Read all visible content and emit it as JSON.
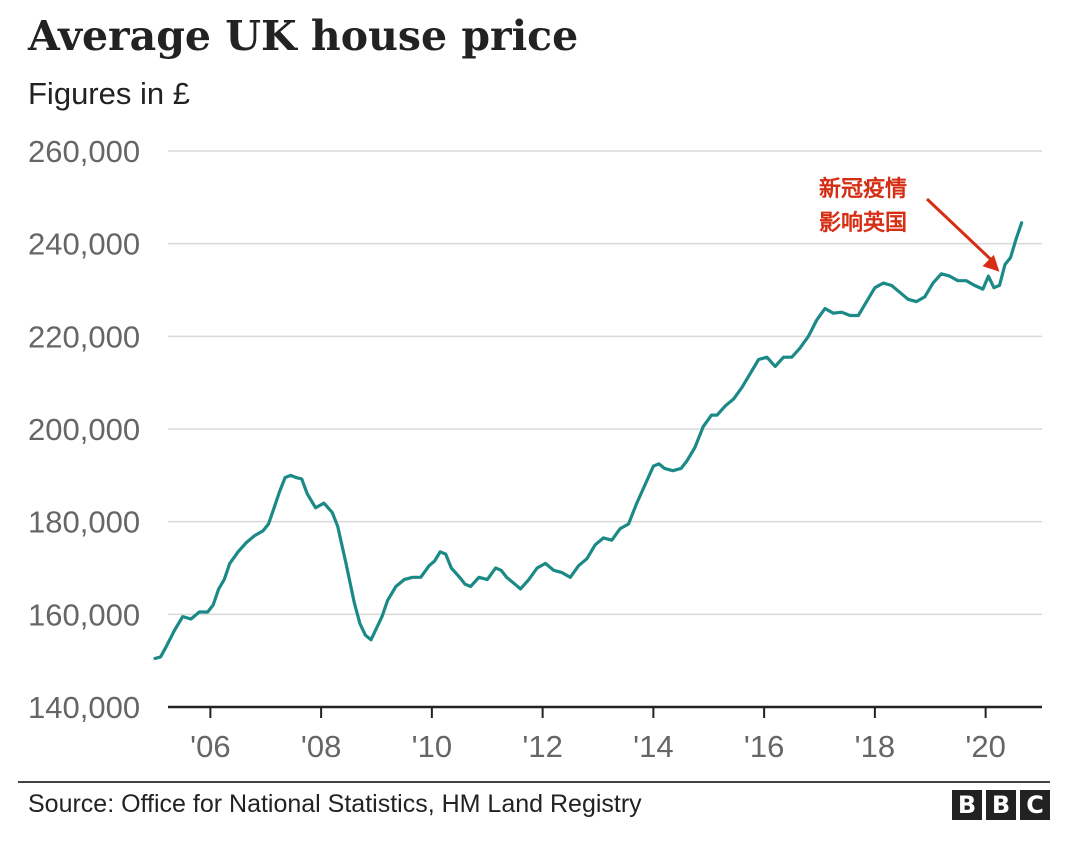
{
  "header": {
    "title": "Average UK house price",
    "subtitle": "Figures in £"
  },
  "footer": {
    "source": "Source: Office for National Statistics, HM Land Registry",
    "logo_letters": [
      "B",
      "B",
      "C"
    ]
  },
  "colors": {
    "line": "#1b8a87",
    "annotation": "#d62e14",
    "grid": "#d9d9d9",
    "tick_text": "#666666",
    "axis": "#222222"
  },
  "chart_data": {
    "type": "line",
    "title": "Average UK house price",
    "subtitle": "Figures in £",
    "ylim": [
      140000,
      260000
    ],
    "xlim": [
      2005,
      2021
    ],
    "y_ticks": [
      140000,
      160000,
      180000,
      200000,
      220000,
      240000,
      260000
    ],
    "y_tick_labels": [
      "140,000",
      "160,000",
      "180,000",
      "200,000",
      "220,000",
      "240,000",
      "260,000"
    ],
    "x_ticks": [
      2006,
      2008,
      2010,
      2012,
      2014,
      2016,
      2018,
      2020
    ],
    "x_tick_labels": [
      "'06",
      "'08",
      "'10",
      "'12",
      "'14",
      "'16",
      "'18",
      "'20"
    ],
    "grid": true,
    "series": [
      {
        "x": [
          2005.0,
          2005.1,
          2005.2,
          2005.35,
          2005.5,
          2005.65,
          2005.8,
          2005.95,
          2006.05,
          2006.15,
          2006.25,
          2006.35,
          2006.5,
          2006.65,
          2006.8,
          2006.95,
          2007.05,
          2007.15,
          2007.25,
          2007.35,
          2007.45,
          2007.55,
          2007.65,
          2007.75,
          2007.9,
          2008.05,
          2008.2,
          2008.3,
          2008.45,
          2008.6,
          2008.7,
          2008.8,
          2008.9,
          2009.0,
          2009.1,
          2009.2,
          2009.35,
          2009.5,
          2009.65,
          2009.8,
          2009.95,
          2010.05,
          2010.15,
          2010.25,
          2010.35,
          2010.5,
          2010.6,
          2010.7,
          2010.85,
          2011.0,
          2011.15,
          2011.25,
          2011.35,
          2011.5,
          2011.6,
          2011.75,
          2011.9,
          2012.05,
          2012.2,
          2012.35,
          2012.5,
          2012.65,
          2012.8,
          2012.95,
          2013.1,
          2013.25,
          2013.4,
          2013.55,
          2013.7,
          2013.85,
          2014.0,
          2014.1,
          2014.2,
          2014.35,
          2014.5,
          2014.6,
          2014.75,
          2014.9,
          2015.05,
          2015.15,
          2015.3,
          2015.45,
          2015.6,
          2015.75,
          2015.9,
          2016.05,
          2016.2,
          2016.35,
          2016.5,
          2016.65,
          2016.8,
          2016.95,
          2017.1,
          2017.25,
          2017.4,
          2017.55,
          2017.7,
          2017.85,
          2018.0,
          2018.15,
          2018.3,
          2018.45,
          2018.6,
          2018.75,
          2018.9,
          2019.05,
          2019.2,
          2019.35,
          2019.5,
          2019.65,
          2019.8,
          2019.95,
          2020.05,
          2020.15,
          2020.25,
          2020.35,
          2020.45,
          2020.55,
          2020.65
        ],
        "values": [
          150500,
          150800,
          153000,
          156500,
          159500,
          159000,
          160500,
          160500,
          162000,
          165500,
          167500,
          171000,
          173500,
          175500,
          177000,
          178000,
          179500,
          183000,
          186500,
          189500,
          190000,
          189500,
          189200,
          186000,
          183000,
          184000,
          182000,
          179000,
          171000,
          162500,
          158000,
          155500,
          154500,
          157000,
          159500,
          163000,
          166000,
          167500,
          168000,
          168000,
          170500,
          171500,
          173500,
          173000,
          170000,
          168000,
          166500,
          166000,
          168000,
          167500,
          170000,
          169500,
          168000,
          166500,
          165500,
          167500,
          170000,
          171000,
          169500,
          169000,
          168000,
          170500,
          172000,
          175000,
          176500,
          176000,
          178500,
          179500,
          184000,
          188000,
          192000,
          192500,
          191500,
          191000,
          191500,
          193000,
          196000,
          200500,
          203000,
          203000,
          205000,
          206500,
          209000,
          212000,
          215000,
          215500,
          213500,
          215500,
          215500,
          217500,
          220000,
          223500,
          226000,
          225000,
          225200,
          224500,
          224500,
          227500,
          230500,
          231500,
          231000,
          229500,
          228000,
          227500,
          228500,
          231500,
          233500,
          233000,
          232000,
          232000,
          231000,
          230200,
          233000,
          230500,
          231000,
          235500,
          237000,
          241000,
          244500
        ]
      }
    ],
    "annotations": [
      {
        "text_lines": [
          "新冠疫情",
          "影响英国"
        ],
        "x": 2020.25,
        "y": 232200
      }
    ]
  }
}
